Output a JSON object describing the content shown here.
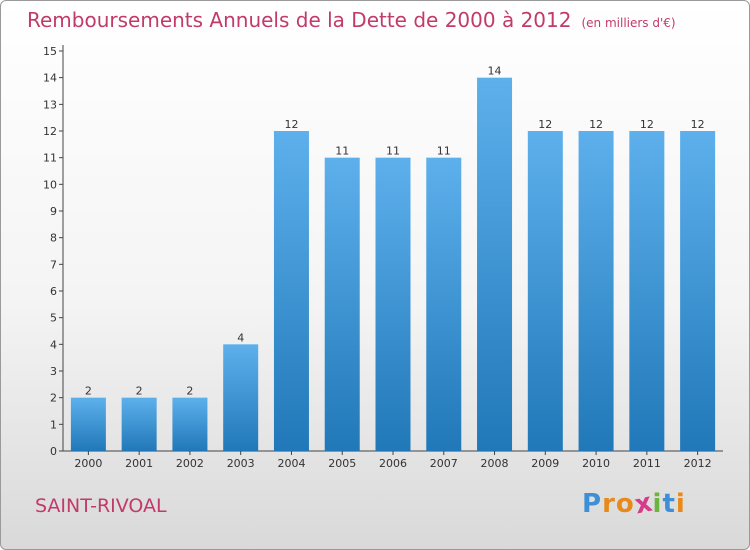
{
  "header": {
    "title": "Remboursements Annuels de la Dette de 2000 à 2012",
    "subtitle": "(en milliers d'€)"
  },
  "footer": {
    "commune": "SAINT-RIVOAL",
    "logo_letters": [
      "P",
      "r",
      "o",
      "x",
      "i",
      "t",
      "i"
    ]
  },
  "colors": {
    "title": "#c23a6a",
    "bar_top": "#5db0ec",
    "bar_bottom": "#2178b8",
    "logo": [
      "#3d8fd6",
      "#e88a1a",
      "#e88a1a",
      "#d63a8a",
      "#6cb33f",
      "#3d8fd6",
      "#e88a1a"
    ]
  },
  "chart_data": {
    "type": "bar",
    "categories": [
      "2000",
      "2001",
      "2002",
      "2003",
      "2004",
      "2005",
      "2006",
      "2007",
      "2008",
      "2009",
      "2010",
      "2011",
      "2012"
    ],
    "values": [
      2,
      2,
      2,
      4,
      12,
      11,
      11,
      11,
      14,
      12,
      12,
      12,
      12
    ],
    "title": "Remboursements Annuels de la Dette de 2000 à 2012",
    "subtitle": "(en milliers d'€)",
    "ylim": [
      0,
      15
    ],
    "yticks": [
      0,
      1,
      2,
      3,
      4,
      5,
      6,
      7,
      8,
      9,
      10,
      11,
      12,
      13,
      14,
      15
    ],
    "grid": false,
    "data_labels": true
  }
}
